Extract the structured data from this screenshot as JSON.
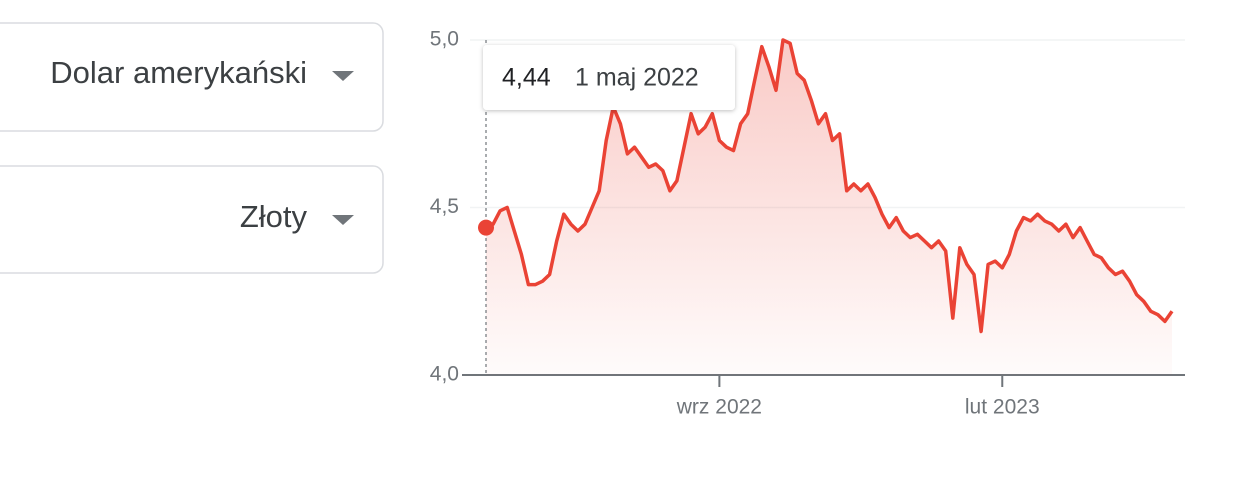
{
  "selectors": {
    "from": "Dolar amerykański",
    "to": "Złoty"
  },
  "chart_data": {
    "type": "line",
    "series": [
      {
        "color": "#ea4335",
        "values": [
          4.44,
          4.45,
          4.49,
          4.5,
          4.43,
          4.36,
          4.27,
          4.27,
          4.28,
          4.3,
          4.4,
          4.48,
          4.45,
          4.43,
          4.45,
          4.5,
          4.55,
          4.7,
          4.8,
          4.75,
          4.66,
          4.68,
          4.65,
          4.62,
          4.63,
          4.61,
          4.55,
          4.58,
          4.68,
          4.78,
          4.72,
          4.74,
          4.78,
          4.7,
          4.68,
          4.67,
          4.75,
          4.78,
          4.88,
          4.98,
          4.92,
          4.85,
          5.0,
          4.99,
          4.9,
          4.88,
          4.82,
          4.75,
          4.78,
          4.7,
          4.72,
          4.55,
          4.57,
          4.55,
          4.57,
          4.53,
          4.48,
          4.44,
          4.47,
          4.43,
          4.41,
          4.42,
          4.4,
          4.38,
          4.4,
          4.37,
          4.17,
          4.38,
          4.33,
          4.3,
          4.13,
          4.33,
          4.34,
          4.32,
          4.36,
          4.43,
          4.47,
          4.46,
          4.48,
          4.46,
          4.45,
          4.43,
          4.45,
          4.41,
          4.44,
          4.4,
          4.36,
          4.35,
          4.32,
          4.3,
          4.31,
          4.28,
          4.24,
          4.22,
          4.19,
          4.18,
          4.16,
          4.19
        ]
      }
    ],
    "xlim": [
      0,
      97
    ],
    "xticks": [
      {
        "value": 33,
        "label": "wrz 2022"
      },
      {
        "value": 73,
        "label": "lut 2023"
      }
    ],
    "ylim": [
      4.0,
      5.0
    ],
    "yticks": [
      {
        "value": 4.0,
        "label": "4,0"
      },
      {
        "value": 4.5,
        "label": "4,5"
      },
      {
        "value": 5.0,
        "label": "5,0"
      }
    ],
    "grid": true,
    "tooltip": {
      "label": "4,44",
      "date": "1 maj 2022"
    }
  }
}
